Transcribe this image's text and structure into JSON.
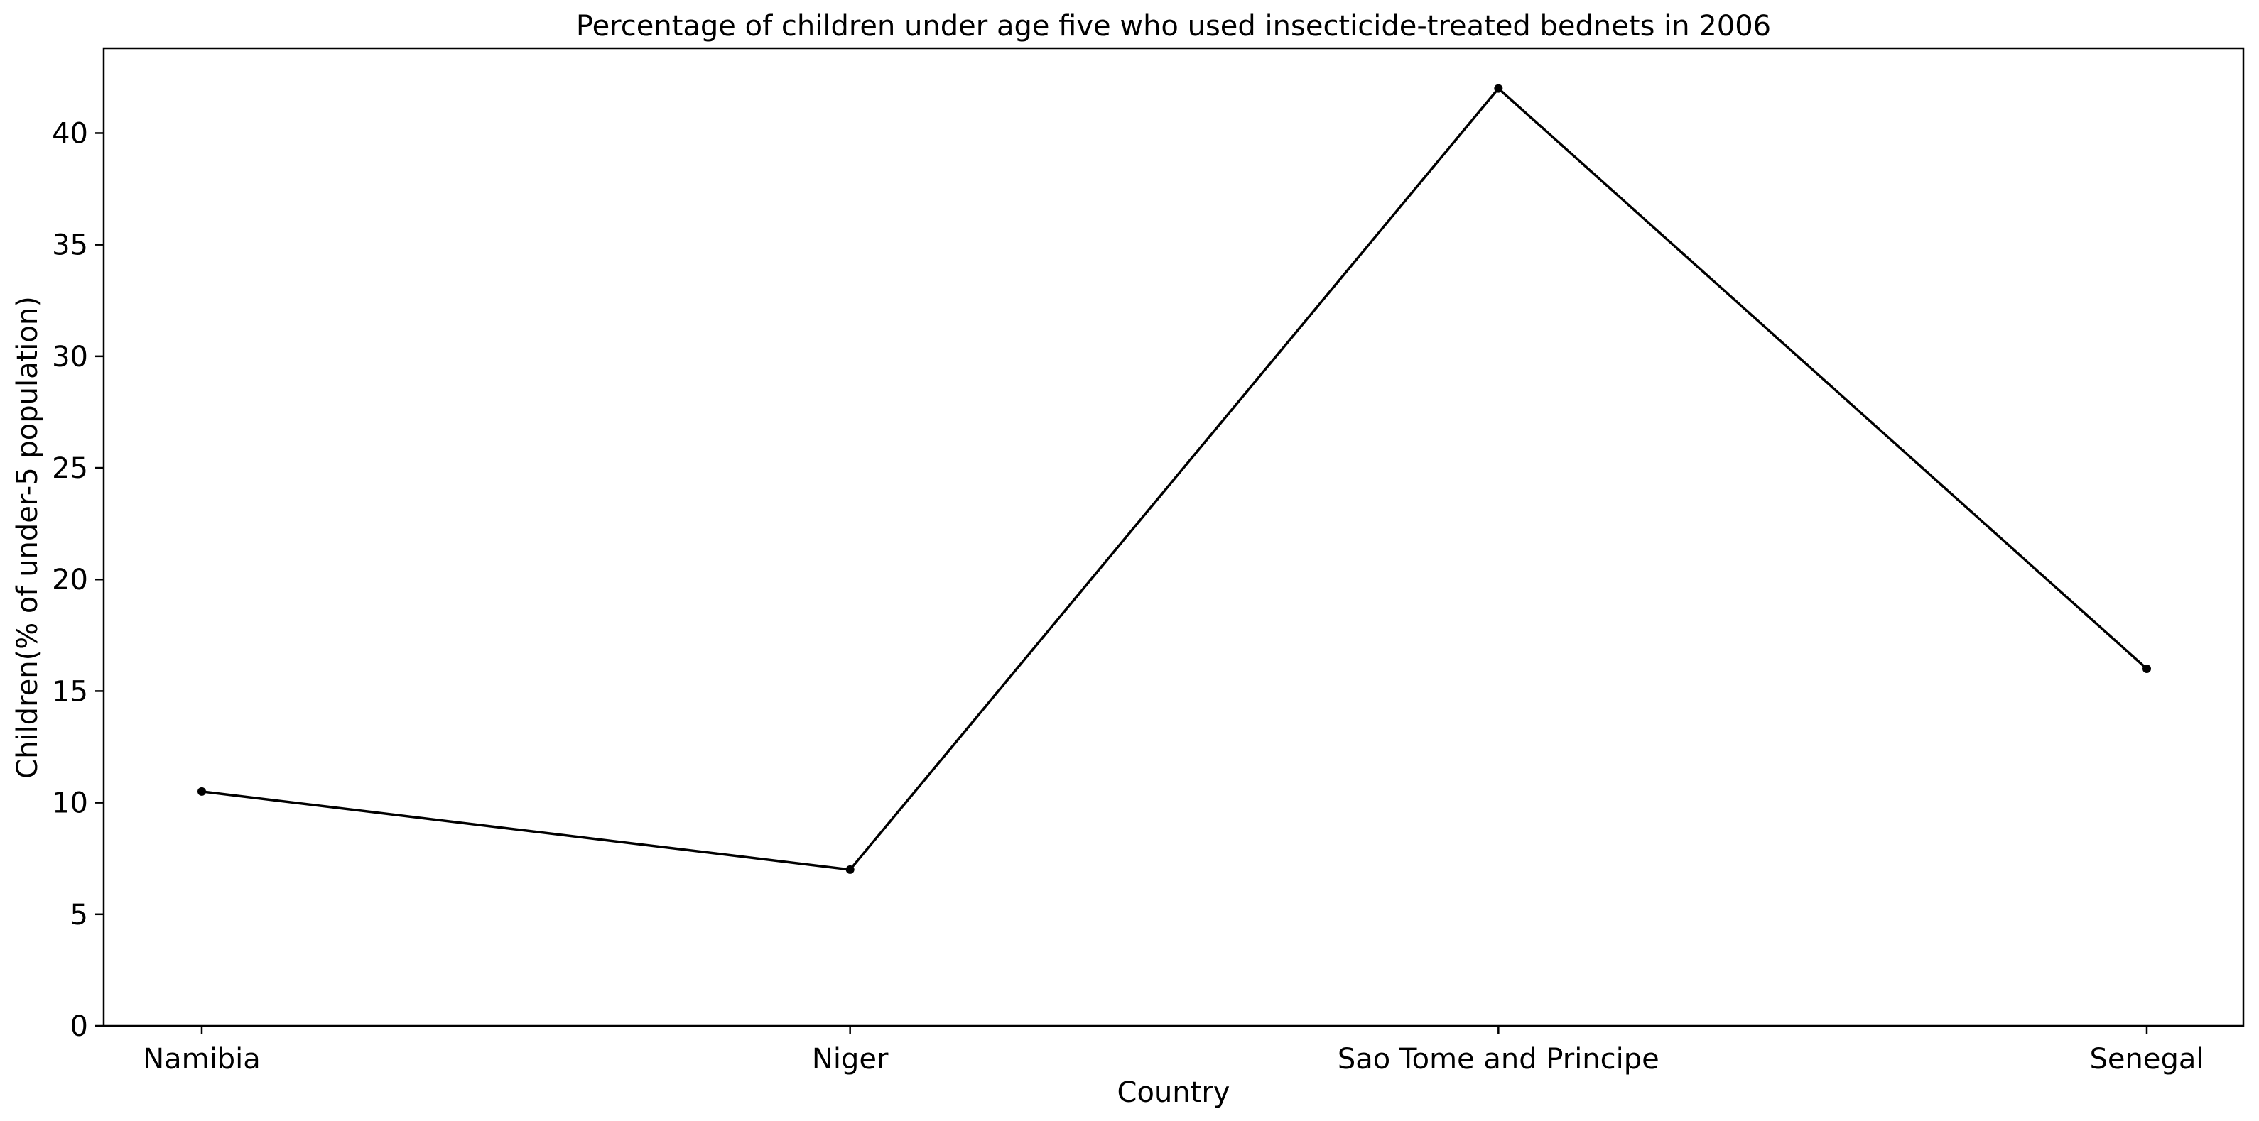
{
  "chart_data": {
    "type": "line",
    "title": "Percentage of children under age five who used insecticide-treated bednets in 2006",
    "xlabel": "Country",
    "ylabel": "Children(% of under-5 population)",
    "categories": [
      "Namibia",
      "Niger",
      "Sao Tome and Principe",
      "Senegal"
    ],
    "series": [
      {
        "values": [
          10.5,
          7.0,
          42.0,
          16.0
        ]
      }
    ],
    "ylim": [
      0,
      43.8
    ],
    "yticks": [
      0,
      5,
      10,
      15,
      20,
      25,
      30,
      35,
      40
    ],
    "grid": false,
    "line_color": "#000000",
    "marker": "point"
  }
}
